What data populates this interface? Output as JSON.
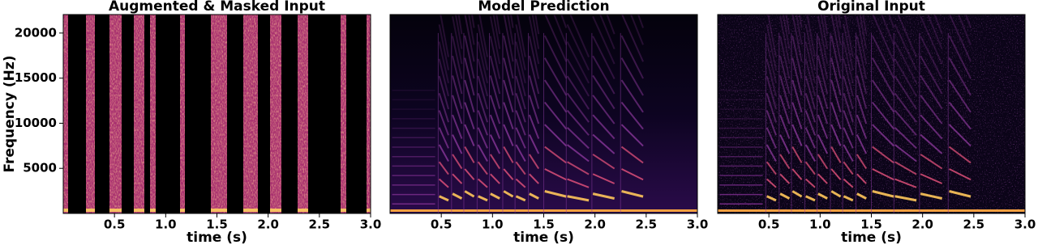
{
  "chart_data": [
    {
      "type": "spectrogram",
      "title": "Augmented & Masked Input",
      "xlabel": "time (s)",
      "ylabel": "Frequency (Hz)",
      "xlim": [
        0,
        3
      ],
      "xticks": [
        0.5,
        {
          "value": 1,
          "label": "1.0"
        },
        1.5,
        {
          "value": 2,
          "label": "2.0"
        },
        2.5,
        {
          "value": 3,
          "label": "3.0"
        }
      ],
      "ylim": [
        0,
        22050
      ],
      "yticks": [
        5000,
        10000,
        15000,
        20000
      ]
    },
    {
      "type": "spectrogram",
      "title": "Model Prediction",
      "xlabel": "time (s)",
      "xlim": [
        0,
        3
      ],
      "xticks": [
        0.5,
        {
          "value": 1,
          "label": "1.0"
        },
        1.5,
        {
          "value": 2,
          "label": "2.0"
        },
        2.5,
        {
          "value": 3,
          "label": "3.0"
        }
      ],
      "ylim": [
        0,
        22050
      ]
    },
    {
      "type": "spectrogram",
      "title": "Original Input",
      "xlabel": "time (s)",
      "xlim": [
        0,
        3
      ],
      "xticks": [
        0.5,
        {
          "value": 1,
          "label": "1.0"
        },
        1.5,
        {
          "value": 2,
          "label": "2.0"
        },
        2.5,
        {
          "value": 3,
          "label": "3.0"
        }
      ],
      "ylim": [
        0,
        22050
      ]
    }
  ]
}
